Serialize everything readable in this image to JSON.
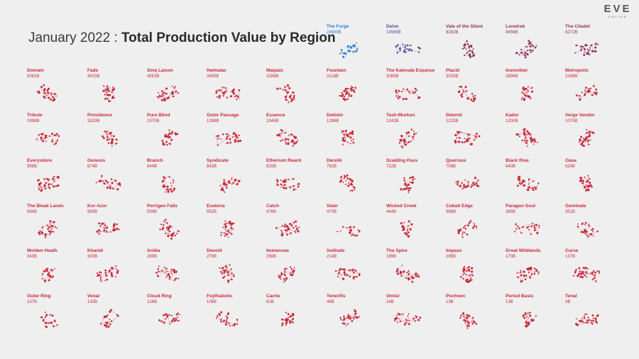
{
  "header": {
    "title_left": "January 2022 : ",
    "title_right": "Total Production Value by Region"
  },
  "logo": {
    "line1": "EVE",
    "line2": "ONLINE"
  },
  "colors": {
    "highlight": "#2f7fd1",
    "secondary": "#5a4a9a",
    "tertiary": "#8e3160",
    "default": "#c8283a"
  },
  "chart_data": {
    "type": "scatter",
    "title": "Total Production Value by Region",
    "unit": "B",
    "regions": [
      {
        "name": "The Forge",
        "value": 24689,
        "label": "24689B",
        "color": "#2f7fd1"
      },
      {
        "name": "Delve",
        "value": 14585,
        "label": "14585B",
        "color": "#5a4a9a"
      },
      {
        "name": "Vale of the Silent",
        "value": 9292,
        "label": "9292B",
        "color": "#8e3160"
      },
      {
        "name": "Lonetrek",
        "value": 8456,
        "label": "8456B",
        "color": "#8e3160"
      },
      {
        "name": "The Citadel",
        "value": 8272,
        "label": "8272B",
        "color": "#8e3160"
      },
      {
        "name": "Domain",
        "value": 5061,
        "label": "5061B",
        "color": "#c8283a"
      },
      {
        "name": "Fade",
        "value": 4915,
        "label": "4915B",
        "color": "#c8283a"
      },
      {
        "name": "Sinq Laison",
        "value": 4553,
        "label": "4553B",
        "color": "#c8283a"
      },
      {
        "name": "Heimatar",
        "value": 3495,
        "label": "3495B",
        "color": "#c8283a"
      },
      {
        "name": "Malpais",
        "value": 3286,
        "label": "3286B",
        "color": "#c8283a"
      },
      {
        "name": "Fountain",
        "value": 3118,
        "label": "3118B",
        "color": "#c8283a"
      },
      {
        "name": "The Kalevala Expanse",
        "value": 3085,
        "label": "3085B",
        "color": "#c8283a"
      },
      {
        "name": "Placid",
        "value": 3033,
        "label": "3033B",
        "color": "#c8283a"
      },
      {
        "name": "Insmother",
        "value": 2896,
        "label": "2896B",
        "color": "#c8283a"
      },
      {
        "name": "Metropolis",
        "value": 2186,
        "label": "2186B",
        "color": "#c8283a"
      },
      {
        "name": "Tribute",
        "value": 1998,
        "label": "1998B",
        "color": "#c8283a"
      },
      {
        "name": "Providence",
        "value": 1823,
        "label": "1823B",
        "color": "#c8283a"
      },
      {
        "name": "Pure Blind",
        "value": 1570,
        "label": "1570B",
        "color": "#c8283a"
      },
      {
        "name": "Outer Passage",
        "value": 1398,
        "label": "1398B",
        "color": "#c8283a"
      },
      {
        "name": "Essence",
        "value": 1346,
        "label": "1346B",
        "color": "#c8283a"
      },
      {
        "name": "Deklein",
        "value": 1288,
        "label": "1288B",
        "color": "#c8283a"
      },
      {
        "name": "Tash-Murkon",
        "value": 1242,
        "label": "1242B",
        "color": "#c8283a"
      },
      {
        "name": "Detorid",
        "value": 1223,
        "label": "1223B",
        "color": "#c8283a"
      },
      {
        "name": "Kador",
        "value": 1200,
        "label": "1200B",
        "color": "#c8283a"
      },
      {
        "name": "Verge Vendor",
        "value": 1070,
        "label": "1070B",
        "color": "#c8283a"
      },
      {
        "name": "Everyshore",
        "value": 996,
        "label": "996B",
        "color": "#c8283a"
      },
      {
        "name": "Genesis",
        "value": 874,
        "label": "874B",
        "color": "#c8283a"
      },
      {
        "name": "Branch",
        "value": 844,
        "label": "844B",
        "color": "#c8283a"
      },
      {
        "name": "Syndicate",
        "value": 843,
        "label": "843B",
        "color": "#c8283a"
      },
      {
        "name": "Etherium Reach",
        "value": 820,
        "label": "820B",
        "color": "#c8283a"
      },
      {
        "name": "Derelik",
        "value": 762,
        "label": "762B",
        "color": "#c8283a"
      },
      {
        "name": "Scalding Pass",
        "value": 722,
        "label": "722B",
        "color": "#c8283a"
      },
      {
        "name": "Querious",
        "value": 708,
        "label": "708B",
        "color": "#c8283a"
      },
      {
        "name": "Black Rise",
        "value": 640,
        "label": "640B",
        "color": "#c8283a"
      },
      {
        "name": "Oasa",
        "value": 624,
        "label": "624B",
        "color": "#c8283a"
      },
      {
        "name": "The Bleak Lands",
        "value": 594,
        "label": "594B",
        "color": "#c8283a"
      },
      {
        "name": "Kor-Azor",
        "value": 580,
        "label": "580B",
        "color": "#c8283a"
      },
      {
        "name": "Perrigen Falls",
        "value": 559,
        "label": "559B",
        "color": "#c8283a"
      },
      {
        "name": "Esoteria",
        "value": 552,
        "label": "552B",
        "color": "#c8283a"
      },
      {
        "name": "Catch",
        "value": 476,
        "label": "476B",
        "color": "#c8283a"
      },
      {
        "name": "Stain",
        "value": 470,
        "label": "470B",
        "color": "#c8283a"
      },
      {
        "name": "Wicked Creek",
        "value": 444,
        "label": "444B",
        "color": "#c8283a"
      },
      {
        "name": "Cobalt Edge",
        "value": 388,
        "label": "388B",
        "color": "#c8283a"
      },
      {
        "name": "Paragon Soul",
        "value": 385,
        "label": "385B",
        "color": "#c8283a"
      },
      {
        "name": "Geminate",
        "value": 351,
        "label": "351B",
        "color": "#c8283a"
      },
      {
        "name": "Molden Heath",
        "value": 343,
        "label": "343B",
        "color": "#c8283a"
      },
      {
        "name": "Khanid",
        "value": 300,
        "label": "300B",
        "color": "#c8283a"
      },
      {
        "name": "Aridia",
        "value": 289,
        "label": "289B",
        "color": "#c8283a"
      },
      {
        "name": "Devoid",
        "value": 279,
        "label": "279B",
        "color": "#c8283a"
      },
      {
        "name": "Immensea",
        "value": 256,
        "label": "256B",
        "color": "#c8283a"
      },
      {
        "name": "Solitude",
        "value": 214,
        "label": "214B",
        "color": "#c8283a"
      },
      {
        "name": "The Spire",
        "value": 199,
        "label": "199B",
        "color": "#c8283a"
      },
      {
        "name": "Impass",
        "value": 195,
        "label": "195B",
        "color": "#c8283a"
      },
      {
        "name": "Great Wildlands",
        "value": 170,
        "label": "170B",
        "color": "#c8283a"
      },
      {
        "name": "Curse",
        "value": 137,
        "label": "137B",
        "color": "#c8283a"
      },
      {
        "name": "Outer Ring",
        "value": 137,
        "label": "137B",
        "color": "#c8283a"
      },
      {
        "name": "Venal",
        "value": 133,
        "label": "133B",
        "color": "#c8283a"
      },
      {
        "name": "Cloud Ring",
        "value": 126,
        "label": "126B",
        "color": "#c8283a"
      },
      {
        "name": "Feythabolis",
        "value": 106,
        "label": "106B",
        "color": "#c8283a"
      },
      {
        "name": "Cache",
        "value": 81,
        "label": "81B",
        "color": "#c8283a"
      },
      {
        "name": "Tenerifis",
        "value": 46,
        "label": "46B",
        "color": "#c8283a"
      },
      {
        "name": "Omist",
        "value": 16,
        "label": "16B",
        "color": "#c8283a"
      },
      {
        "name": "Pochven",
        "value": 13,
        "label": "13B",
        "color": "#c8283a"
      },
      {
        "name": "Period Basis",
        "value": 13,
        "label": "13B",
        "color": "#c8283a"
      },
      {
        "name": "Tenal",
        "value": 0,
        "label": "0B",
        "color": "#c8283a"
      }
    ]
  }
}
